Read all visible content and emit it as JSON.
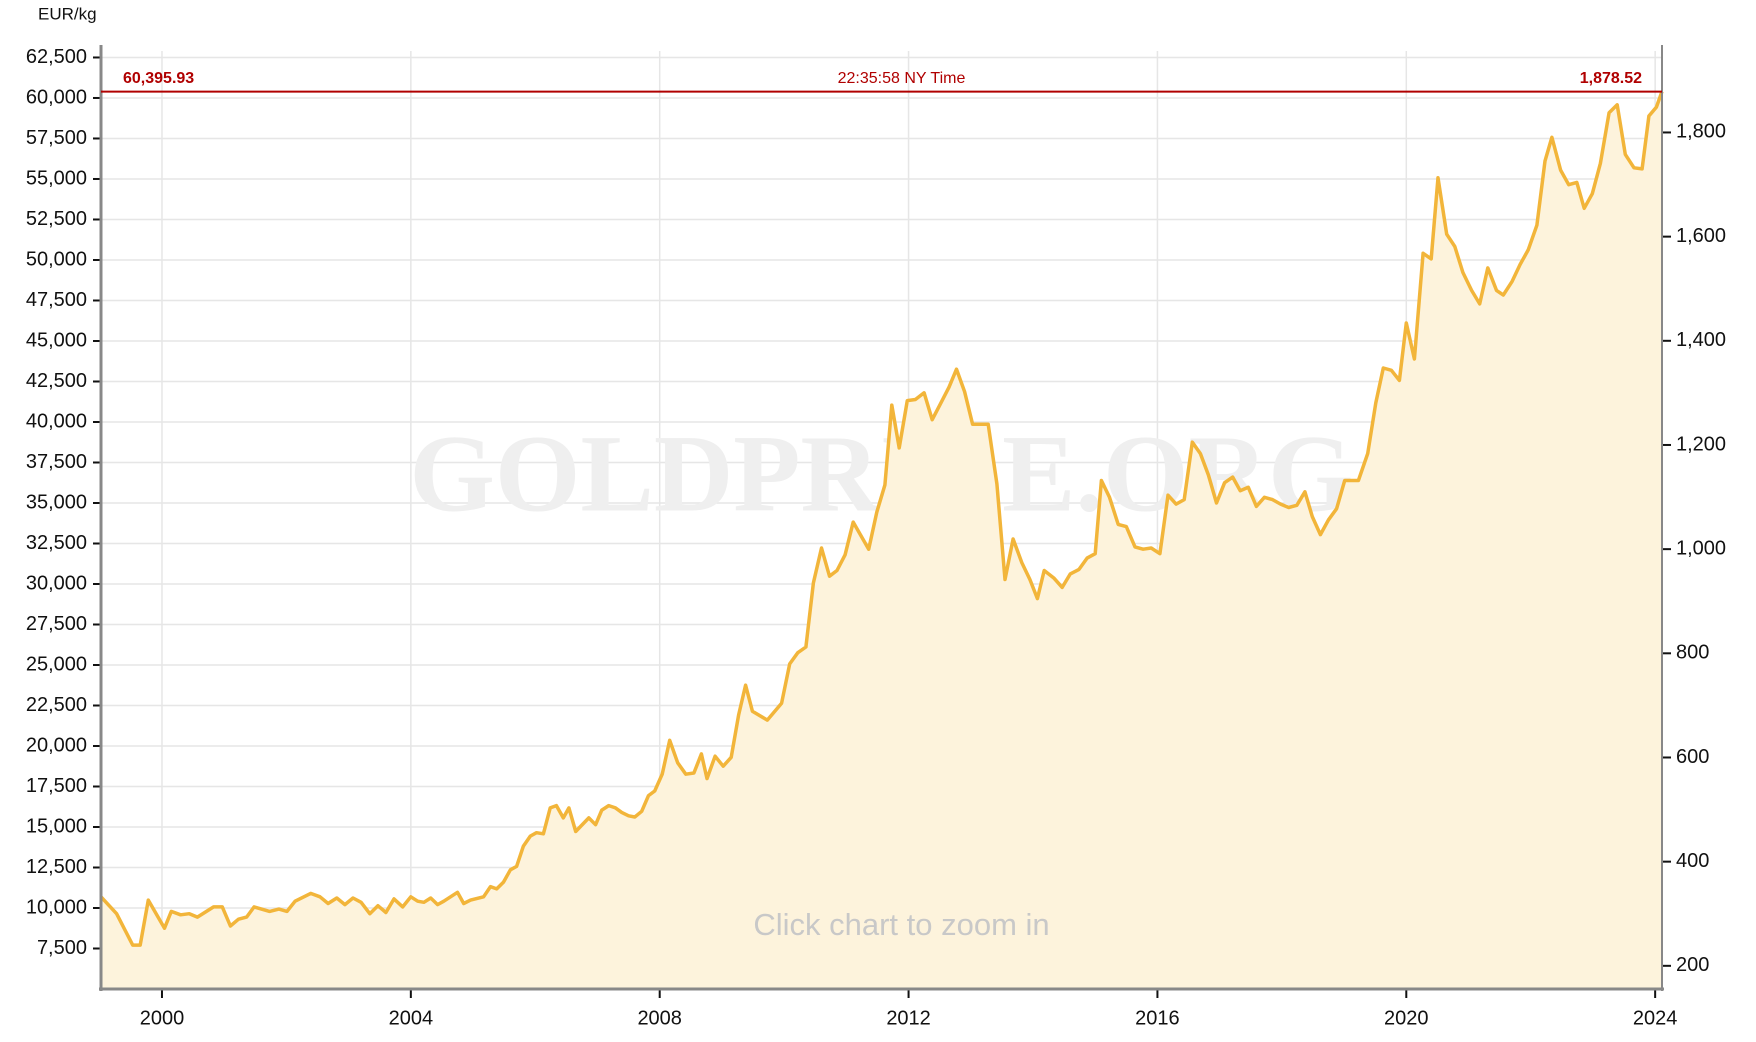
{
  "chart_data": {
    "type": "area",
    "y_axis_label": "EUR/kg",
    "watermark": "GOLDPRICE.ORG",
    "hint": "Click chart to zoom in",
    "current": {
      "value": 60395.93,
      "label": "60,395.93"
    },
    "current_y2": {
      "value": 1878.52,
      "label": "1,878.52"
    },
    "time_label": "22:35:58 NY Time",
    "xlim": [
      1999.02,
      2024.11
    ],
    "xticks": [
      2000,
      2004,
      2008,
      2012,
      2016,
      2020,
      2024
    ],
    "ylim": [
      5000,
      62900
    ],
    "yticks": [
      {
        "value": 7500,
        "label": "7,500"
      },
      {
        "value": 10000,
        "label": "10,000"
      },
      {
        "value": 12500,
        "label": "12,500"
      },
      {
        "value": 15000,
        "label": "15,000"
      },
      {
        "value": 17500,
        "label": "17,500"
      },
      {
        "value": 20000,
        "label": "20,000"
      },
      {
        "value": 22500,
        "label": "22,500"
      },
      {
        "value": 25000,
        "label": "25,000"
      },
      {
        "value": 27500,
        "label": "27,500"
      },
      {
        "value": 30000,
        "label": "30,000"
      },
      {
        "value": 32500,
        "label": "32,500"
      },
      {
        "value": 35000,
        "label": "35,000"
      },
      {
        "value": 37500,
        "label": "37,500"
      },
      {
        "value": 40000,
        "label": "40,000"
      },
      {
        "value": 42500,
        "label": "42,500"
      },
      {
        "value": 45000,
        "label": "45,000"
      },
      {
        "value": 47500,
        "label": "47,500"
      },
      {
        "value": 50000,
        "label": "50,000"
      },
      {
        "value": 52500,
        "label": "52,500"
      },
      {
        "value": 55000,
        "label": "55,000"
      },
      {
        "value": 57500,
        "label": "57,500"
      },
      {
        "value": 60000,
        "label": "60,000"
      },
      {
        "value": 62500,
        "label": "62,500"
      }
    ],
    "y2lim": [
      155.5,
      1956.4
    ],
    "y2ticks": [
      200,
      400,
      600,
      800,
      {
        "value": 1000,
        "label": "1,000"
      },
      {
        "value": 1200,
        "label": "1,200"
      },
      {
        "value": 1400,
        "label": "1,400"
      },
      {
        "value": 1600,
        "label": "1,600"
      },
      {
        "value": 1800,
        "label": "1,800"
      }
    ],
    "grid": true,
    "line_color": "#f2b53a",
    "fill_color": "#fdf3dc",
    "current_color": "#b00000",
    "x": [
      1999.02,
      1999.27,
      1999.53,
      1999.65,
      1999.78,
      2000.04,
      2000.15,
      2000.3,
      2000.44,
      2000.57,
      2000.83,
      2000.97,
      2001.1,
      2001.23,
      2001.36,
      2001.48,
      2001.73,
      2001.88,
      2002.01,
      2002.14,
      2002.39,
      2002.54,
      2002.67,
      2002.81,
      2002.94,
      2003.07,
      2003.2,
      2003.34,
      2003.47,
      2003.6,
      2003.73,
      2003.87,
      2004.0,
      2004.11,
      2004.21,
      2004.32,
      2004.43,
      2004.53,
      2004.75,
      2004.85,
      2004.96,
      2005.17,
      2005.28,
      2005.38,
      2005.49,
      2005.6,
      2005.7,
      2005.81,
      2005.92,
      2006.02,
      2006.13,
      2006.24,
      2006.34,
      2006.45,
      2006.54,
      2006.65,
      2006.86,
      2006.97,
      2007.07,
      2007.18,
      2007.29,
      2007.39,
      2007.5,
      2007.6,
      2007.71,
      2007.82,
      2007.92,
      2008.04,
      2008.16,
      2008.29,
      2008.42,
      2008.55,
      2008.67,
      2008.76,
      2008.89,
      2009.02,
      2009.15,
      2009.27,
      2009.38,
      2009.49,
      2009.73,
      2009.96,
      2010.09,
      2010.22,
      2010.35,
      2010.47,
      2010.6,
      2010.73,
      2010.85,
      2010.98,
      2011.11,
      2011.36,
      2011.49,
      2011.62,
      2011.73,
      2011.85,
      2011.98,
      2012.11,
      2012.25,
      2012.38,
      2012.52,
      2012.65,
      2012.77,
      2012.9,
      2013.03,
      2013.28,
      2013.42,
      2013.55,
      2013.68,
      2013.82,
      2013.95,
      2014.07,
      2014.18,
      2014.34,
      2014.47,
      2014.6,
      2014.74,
      2014.87,
      2015.0,
      2015.1,
      2015.23,
      2015.37,
      2015.5,
      2015.64,
      2015.77,
      2015.9,
      2016.04,
      2016.17,
      2016.3,
      2016.43,
      2016.56,
      2016.69,
      2016.82,
      2016.95,
      2017.08,
      2017.21,
      2017.33,
      2017.46,
      2017.59,
      2017.72,
      2017.85,
      2017.98,
      2018.11,
      2018.24,
      2018.37,
      2018.49,
      2018.62,
      2018.75,
      2018.88,
      2019.01,
      2019.23,
      2019.38,
      2019.51,
      2019.63,
      2019.76,
      2019.89,
      2020.0,
      2020.13,
      2020.27,
      2020.4,
      2020.51,
      2020.65,
      2020.78,
      2020.91,
      2021.05,
      2021.18,
      2021.31,
      2021.45,
      2021.56,
      2021.7,
      2021.83,
      2021.96,
      2022.1,
      2022.23,
      2022.34,
      2022.48,
      2022.61,
      2022.74,
      2022.86,
      2022.99,
      2023.12,
      2023.26,
      2023.39,
      2023.52,
      2023.66,
      2023.79,
      2023.9,
      2024.02,
      2024.11
    ],
    "values": [
      10690,
      9650,
      7710,
      7710,
      10490,
      8750,
      9790,
      9580,
      9650,
      9440,
      10070,
      10070,
      8890,
      9310,
      9440,
      10070,
      9790,
      9930,
      9790,
      10420,
      10900,
      10690,
      10280,
      10620,
      10210,
      10620,
      10350,
      9650,
      10140,
      9720,
      10560,
      10070,
      10690,
      10420,
      10350,
      10620,
      10210,
      10420,
      10970,
      10280,
      10490,
      10690,
      11320,
      11180,
      11600,
      12360,
      12570,
      13820,
      14440,
      14650,
      14580,
      16180,
      16320,
      15560,
      16180,
      14720,
      15560,
      15140,
      16040,
      16320,
      16180,
      15900,
      15690,
      15620,
      15970,
      16940,
      17220,
      18260,
      20350,
      18960,
      18260,
      18330,
      19510,
      17990,
      19370,
      18750,
      19300,
      21940,
      23750,
      22150,
      21600,
      22640,
      25070,
      25760,
      26110,
      30070,
      32220,
      30480,
      30830,
      31800,
      33820,
      32150,
      34440,
      36110,
      41040,
      38400,
      41320,
      41390,
      41800,
      40140,
      41180,
      42150,
      43260,
      41870,
      39860,
      39860,
      36180,
      30280,
      32780,
      31320,
      30280,
      29100,
      30830,
      30350,
      29790,
      30620,
      30900,
      31600,
      31870,
      36390,
      35350,
      33680,
      33540,
      32290,
      32150,
      32220,
      31870,
      35480,
      34930,
      35210,
      38750,
      38050,
      36730,
      35000,
      36250,
      36600,
      35760,
      35970,
      34790,
      35350,
      35210,
      34930,
      34720,
      34860,
      35690,
      34160,
      33050,
      33960,
      34650,
      36390,
      36390,
      38050,
      41180,
      43330,
      43190,
      42570,
      46110,
      43890,
      50410,
      50070,
      55070,
      51590,
      50830,
      49230,
      48120,
      47290,
      49510,
      48120,
      47840,
      48680,
      49720,
      50620,
      52150,
      56110,
      57570,
      55550,
      54650,
      54790,
      53190,
      54090,
      55970,
      59090,
      59580,
      56520,
      55690,
      55620,
      58890,
      59440,
      60400
    ]
  }
}
